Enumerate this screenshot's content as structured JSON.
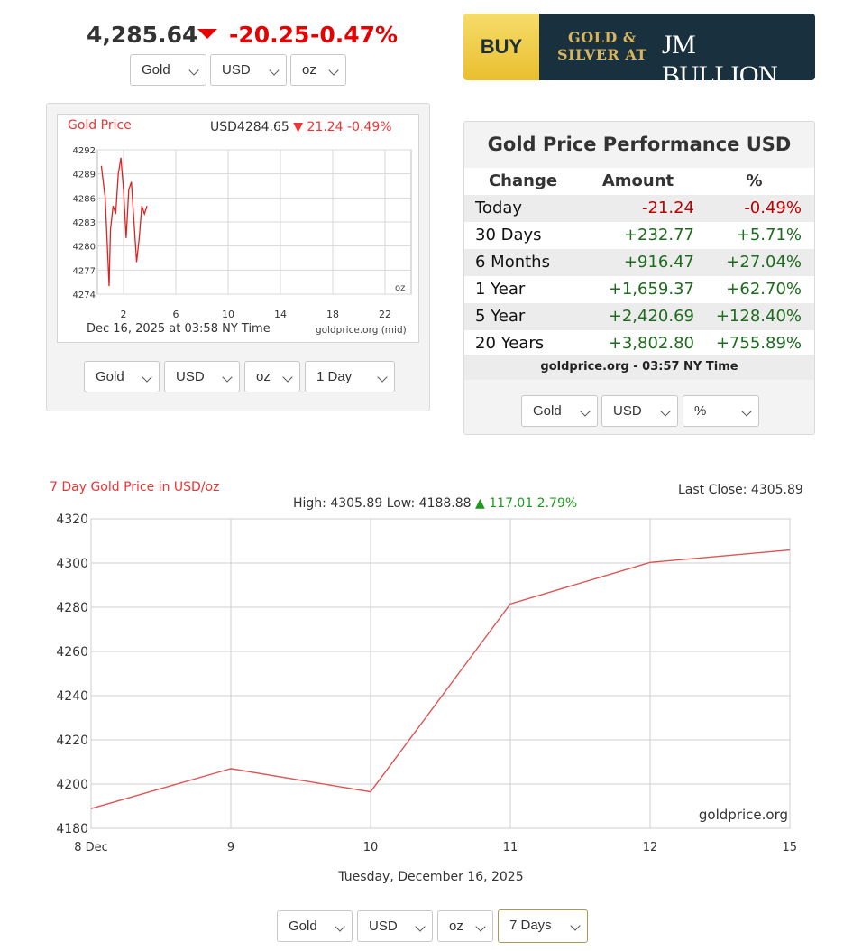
{
  "header": {
    "price": "4,285.64",
    "change": "-20.25",
    "change_pct": "-0.47%",
    "direction_icon": "down-triangle-icon",
    "selects": {
      "metal": "Gold",
      "currency": "USD",
      "unit": "oz"
    }
  },
  "ad": {
    "buy": "BUY",
    "line1": "GOLD &",
    "line2": "SILVER AT",
    "brand": "JM BULLION"
  },
  "mini_chart": {
    "title": "Gold Price",
    "quote_price": "USD4284.65",
    "quote_change": "21.24 -0.49%",
    "date": "Dec 16, 2025 at 03:58 NY Time",
    "source": "goldprice.org (mid)",
    "unit": "oz",
    "selects": {
      "metal": "Gold",
      "currency": "USD",
      "unit": "oz",
      "range": "1 Day"
    }
  },
  "performance": {
    "title": "Gold Price Performance USD",
    "headers": [
      "Change",
      "Amount",
      "%"
    ],
    "rows": [
      {
        "period": "Today",
        "amount": "-21.24",
        "pct": "-0.49%"
      },
      {
        "period": "30 Days",
        "amount": "+232.77",
        "pct": "+5.71%"
      },
      {
        "period": "6 Months",
        "amount": "+916.47",
        "pct": "+27.04%"
      },
      {
        "period": "1 Year",
        "amount": "+1,659.37",
        "pct": "+62.70%"
      },
      {
        "period": "5 Year",
        "amount": "+2,420.69",
        "pct": "+128.40%"
      },
      {
        "period": "20 Years",
        "amount": "+3,802.80",
        "pct": "+755.89%"
      }
    ],
    "source": "goldprice.org - 03:57 NY Time",
    "selects": {
      "metal": "Gold",
      "currency": "USD",
      "mode": "%"
    }
  },
  "big_chart": {
    "title": "7 Day Gold Price in USD/oz",
    "last_close": "Last Close: 4305.89",
    "high_low": "High: 4305.89 Low: 4188.88",
    "change": "117.01 2.79%",
    "watermark": "goldprice.org",
    "date": "Tuesday, December 16, 2025",
    "selects": {
      "metal": "Gold",
      "currency": "USD",
      "unit": "oz",
      "range": "7 Days"
    }
  },
  "chart_data": [
    {
      "type": "line",
      "title": "Gold Price",
      "x_ticks": [
        2,
        6,
        10,
        14,
        18,
        22
      ],
      "y_ticks": [
        4274,
        4277,
        4280,
        4283,
        4286,
        4289,
        4292
      ],
      "xlim": [
        0,
        24
      ],
      "ylim": [
        4274,
        4292
      ],
      "grid": true,
      "color": "#dd2222",
      "x": [
        0.3,
        0.6,
        0.9,
        1.0,
        1.2,
        1.4,
        1.6,
        1.8,
        2.0,
        2.2,
        2.4,
        2.6,
        2.8,
        3.0,
        3.2,
        3.4,
        3.6,
        3.8
      ],
      "values": [
        4290,
        4286,
        4275,
        4282,
        4285,
        4284,
        4289,
        4291,
        4287,
        4281,
        4287,
        4288,
        4283,
        4278,
        4281,
        4285,
        4284,
        4285
      ]
    },
    {
      "type": "line",
      "title": "7 Day Gold Price in USD/oz",
      "categories": [
        "8 Dec",
        "9",
        "10",
        "11",
        "12",
        "15"
      ],
      "values": [
        4188.88,
        4207,
        4196.5,
        4281.5,
        4300.3,
        4305.89
      ],
      "y_ticks": [
        4180,
        4200,
        4220,
        4240,
        4260,
        4280,
        4300,
        4320
      ],
      "ylim": [
        4180,
        4320
      ],
      "grid": true,
      "color": "#dd5555"
    }
  ]
}
